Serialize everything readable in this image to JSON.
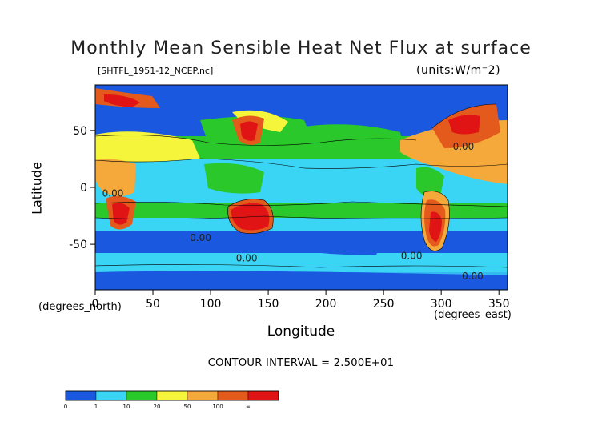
{
  "chart_data": {
    "type": "heatmap",
    "title": "Monthly Mean Sensible Heat Net Flux at surface",
    "subtitle": "[SHTFL_1951-12_NCEP.nc]",
    "units": "(units:W/m^-2)",
    "units_display": "(units:W/m⁻2)",
    "xlabel": "Longitude",
    "ylabel": "Latitude",
    "x_unit_label": "(degrees_east)",
    "y_unit_label": "(degrees_north)",
    "xlim": [
      0,
      357.5
    ],
    "ylim": [
      -90,
      90
    ],
    "x_ticks": [
      0,
      50,
      100,
      150,
      200,
      250,
      300,
      350
    ],
    "y_ticks": [
      -50,
      0,
      50
    ],
    "contour_interval_text": "CONTOUR INTERVAL = 2.500E+01",
    "contour_labels": [
      "0.00",
      "0.00",
      "0.00",
      "0.00",
      "0.00",
      "0.00"
    ],
    "colorbar": {
      "labels": [
        "0",
        "1",
        "10",
        "20",
        "50",
        "100",
        "∞"
      ],
      "colors": [
        "#1a58e0",
        "#3ad4f5",
        "#2ac82a",
        "#f5f53c",
        "#f5a93a",
        "#e45a1c",
        "#e01414"
      ]
    },
    "grid": false,
    "legend": "colorbar-bottom-left"
  }
}
